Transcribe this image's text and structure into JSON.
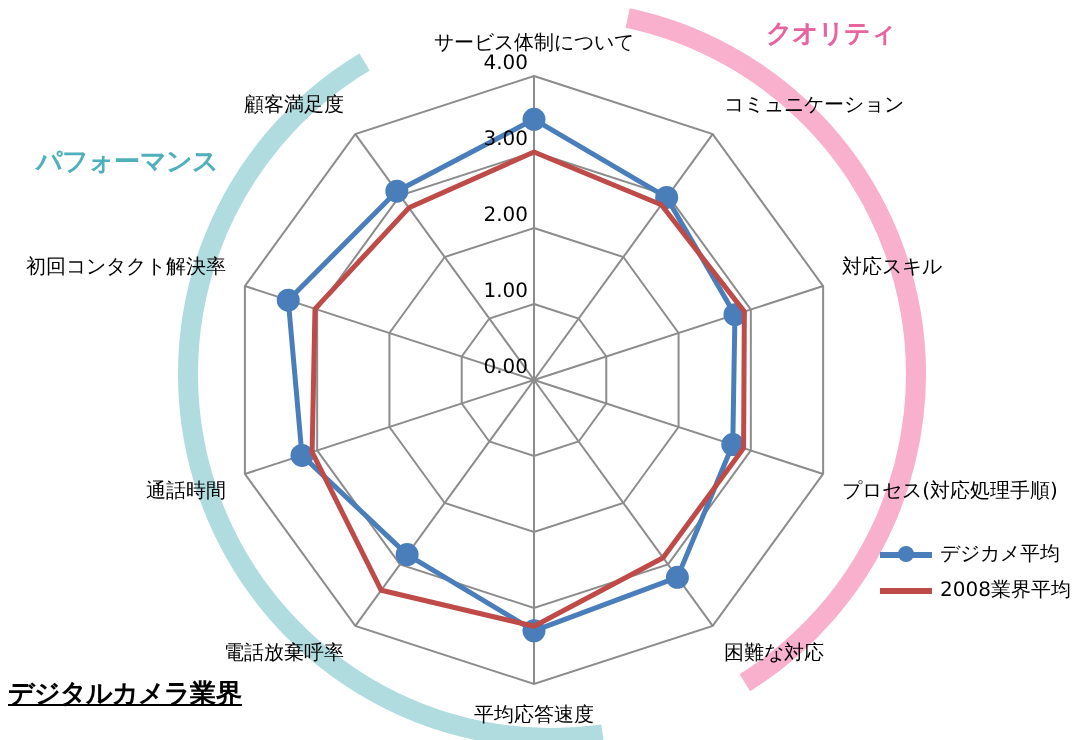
{
  "chart_data": {
    "type": "radar",
    "categories": [
      "サービス体制について",
      "コミュニケーション",
      "対応スキル",
      "プロセス(対応処理手順)",
      "困難な対応",
      "平均応答速度",
      "電話放棄呼率",
      "通話時間",
      "初回コンタクト解決率",
      "顧客満足度"
    ],
    "series": [
      {
        "name": "デジカメ平均",
        "color": "#4a7ebb",
        "marker": "circle",
        "values": [
          3.43,
          2.97,
          2.78,
          2.75,
          3.21,
          3.3,
          2.84,
          3.21,
          3.4,
          3.07
        ]
      },
      {
        "name": "2008業界平均",
        "color": "#be4b48",
        "marker": "none",
        "values": [
          3.0,
          2.85,
          2.91,
          2.9,
          2.89,
          3.24,
          3.42,
          3.07,
          3.03,
          2.8
        ]
      }
    ],
    "ylim": [
      0,
      4
    ],
    "yticks": [
      {
        "value": 0,
        "label": "0.00"
      },
      {
        "value": 1,
        "label": "1.00"
      },
      {
        "value": 2,
        "label": "2.00"
      },
      {
        "value": 3,
        "label": "3.00"
      },
      {
        "value": 4,
        "label": "4.00"
      }
    ],
    "grid": true,
    "legend": "right",
    "annotations": [
      "クオリティ",
      "パフォーマンス",
      "デジタルカメラ業界"
    ]
  }
}
